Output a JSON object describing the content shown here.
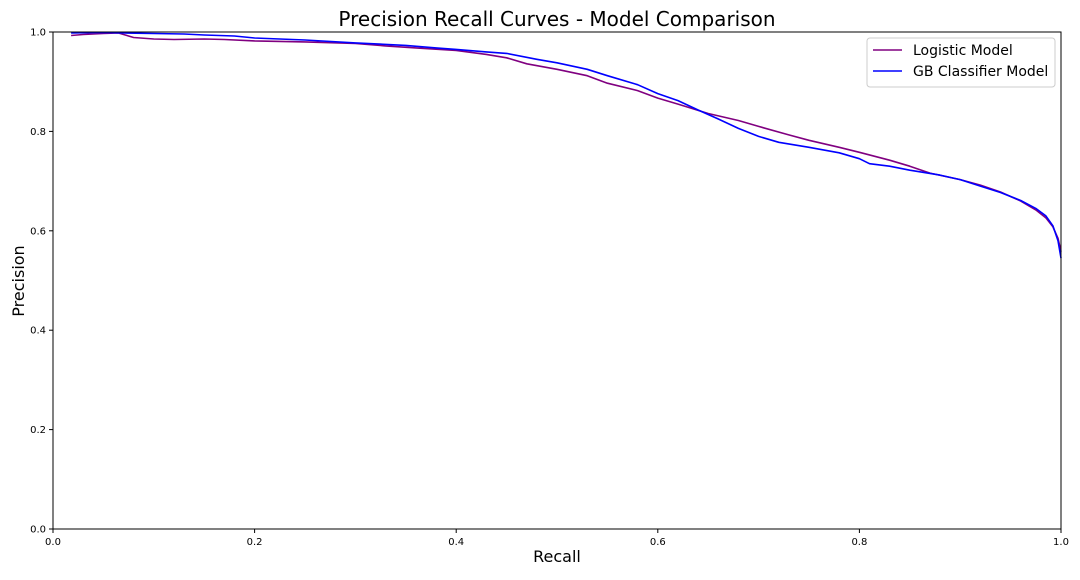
{
  "chart_data": {
    "type": "line",
    "title": "Precision Recall Curves - Model Comparison",
    "xlabel": "Recall",
    "ylabel": "Precision",
    "xlim": [
      0.0,
      1.0
    ],
    "ylim": [
      0.0,
      1.0
    ],
    "xticks": [
      "0.0",
      "0.2",
      "0.4",
      "0.6",
      "0.8",
      "1.0"
    ],
    "yticks": [
      "0.0",
      "0.2",
      "0.4",
      "0.6",
      "0.8",
      "1.0"
    ],
    "grid": false,
    "legend_position": "top-right",
    "series": [
      {
        "name": "Logistic Model",
        "color": "#800080",
        "points": [
          [
            0.018,
            0.993
          ],
          [
            0.03,
            0.995
          ],
          [
            0.05,
            0.997
          ],
          [
            0.065,
            0.998
          ],
          [
            0.08,
            0.989
          ],
          [
            0.1,
            0.986
          ],
          [
            0.12,
            0.985
          ],
          [
            0.15,
            0.986
          ],
          [
            0.17,
            0.985
          ],
          [
            0.2,
            0.982
          ],
          [
            0.25,
            0.98
          ],
          [
            0.3,
            0.977
          ],
          [
            0.33,
            0.972
          ],
          [
            0.36,
            0.968
          ],
          [
            0.4,
            0.963
          ],
          [
            0.43,
            0.955
          ],
          [
            0.45,
            0.948
          ],
          [
            0.47,
            0.936
          ],
          [
            0.5,
            0.925
          ],
          [
            0.53,
            0.912
          ],
          [
            0.55,
            0.897
          ],
          [
            0.58,
            0.882
          ],
          [
            0.6,
            0.867
          ],
          [
            0.62,
            0.855
          ],
          [
            0.65,
            0.836
          ],
          [
            0.68,
            0.822
          ],
          [
            0.7,
            0.81
          ],
          [
            0.73,
            0.793
          ],
          [
            0.75,
            0.782
          ],
          [
            0.78,
            0.768
          ],
          [
            0.8,
            0.758
          ],
          [
            0.83,
            0.742
          ],
          [
            0.85,
            0.73
          ],
          [
            0.87,
            0.716
          ],
          [
            0.9,
            0.703
          ],
          [
            0.92,
            0.692
          ],
          [
            0.94,
            0.678
          ],
          [
            0.96,
            0.66
          ],
          [
            0.975,
            0.642
          ],
          [
            0.985,
            0.626
          ],
          [
            0.992,
            0.608
          ],
          [
            0.997,
            0.585
          ],
          [
            1.0,
            0.558
          ]
        ]
      },
      {
        "name": "GB Classifier Model",
        "color": "#0000ff",
        "points": [
          [
            0.018,
            0.998
          ],
          [
            0.05,
            0.999
          ],
          [
            0.07,
            0.998
          ],
          [
            0.1,
            0.997
          ],
          [
            0.13,
            0.996
          ],
          [
            0.15,
            0.994
          ],
          [
            0.18,
            0.992
          ],
          [
            0.2,
            0.988
          ],
          [
            0.25,
            0.984
          ],
          [
            0.3,
            0.978
          ],
          [
            0.35,
            0.973
          ],
          [
            0.38,
            0.968
          ],
          [
            0.4,
            0.965
          ],
          [
            0.43,
            0.96
          ],
          [
            0.45,
            0.957
          ],
          [
            0.48,
            0.945
          ],
          [
            0.5,
            0.938
          ],
          [
            0.53,
            0.925
          ],
          [
            0.55,
            0.912
          ],
          [
            0.58,
            0.894
          ],
          [
            0.6,
            0.876
          ],
          [
            0.62,
            0.862
          ],
          [
            0.64,
            0.843
          ],
          [
            0.66,
            0.825
          ],
          [
            0.68,
            0.806
          ],
          [
            0.7,
            0.79
          ],
          [
            0.72,
            0.778
          ],
          [
            0.75,
            0.768
          ],
          [
            0.78,
            0.757
          ],
          [
            0.8,
            0.745
          ],
          [
            0.81,
            0.735
          ],
          [
            0.83,
            0.73
          ],
          [
            0.85,
            0.722
          ],
          [
            0.88,
            0.712
          ],
          [
            0.9,
            0.703
          ],
          [
            0.92,
            0.69
          ],
          [
            0.94,
            0.677
          ],
          [
            0.96,
            0.661
          ],
          [
            0.975,
            0.645
          ],
          [
            0.985,
            0.63
          ],
          [
            0.992,
            0.61
          ],
          [
            0.997,
            0.58
          ],
          [
            1.0,
            0.545
          ]
        ]
      }
    ]
  }
}
